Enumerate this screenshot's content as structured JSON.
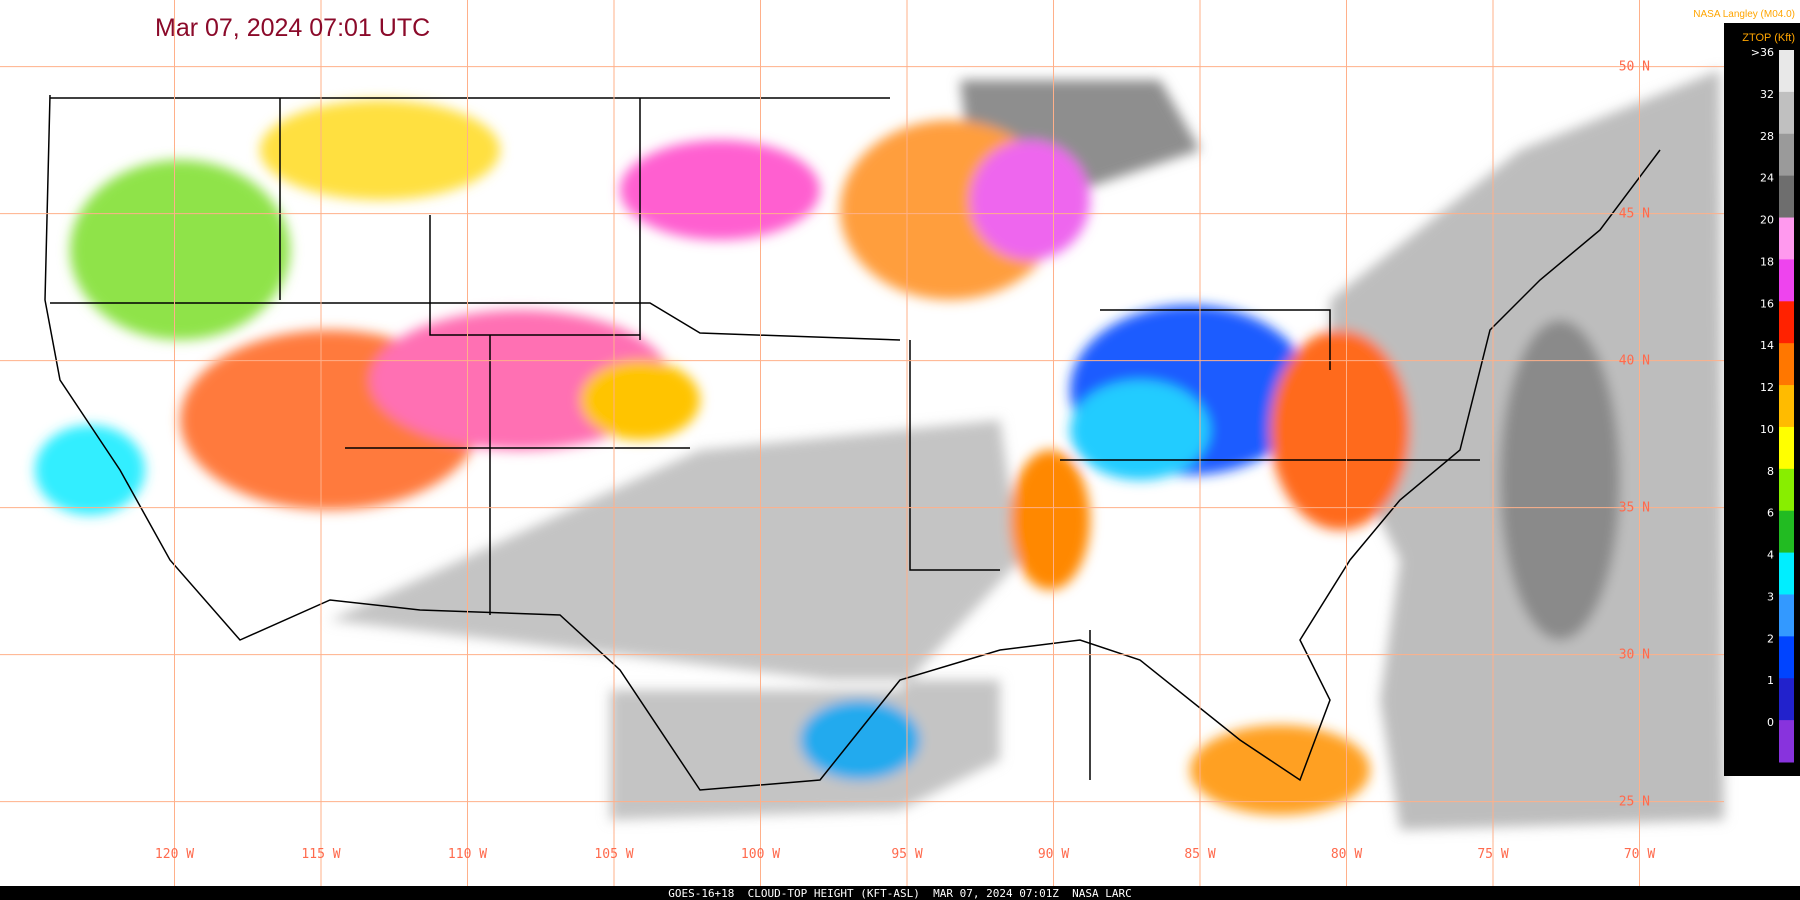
{
  "title": "Mar 07, 2024 07:01 UTC",
  "credit": "NASA Langley (M04.0)",
  "colorbar": {
    "title": "ZTOP (Kft)",
    "labels": [
      ">36",
      "32",
      "28",
      "24",
      "20",
      "18",
      "16",
      "14",
      "12",
      "10",
      "8",
      "6",
      "4",
      "3",
      "2",
      "1",
      "0"
    ],
    "colors": [
      "#e8e8e8",
      "#c0c0c0",
      "#9a9a9a",
      "#6e6e6e",
      "#ff99ee",
      "#ee44ee",
      "#ff2200",
      "#ff7700",
      "#ffbb00",
      "#ffff00",
      "#88ee00",
      "#22bb22",
      "#00eeff",
      "#3399ff",
      "#0044ff",
      "#2222cc",
      "#8833dd"
    ]
  },
  "longitude_labels": [
    "120 W",
    "115 W",
    "110 W",
    "105 W",
    "100 W",
    "95 W",
    "90 W",
    "85 W",
    "80 W",
    "75 W",
    "70 W"
  ],
  "latitude_labels": [
    "50 N",
    "45 N",
    "40 N",
    "35 N",
    "30 N",
    "25 N"
  ],
  "footer": "GOES-16+18  CLOUD-TOP HEIGHT (KFT-ASL)  MAR 07, 2024 07:01Z  NASA LARC"
}
